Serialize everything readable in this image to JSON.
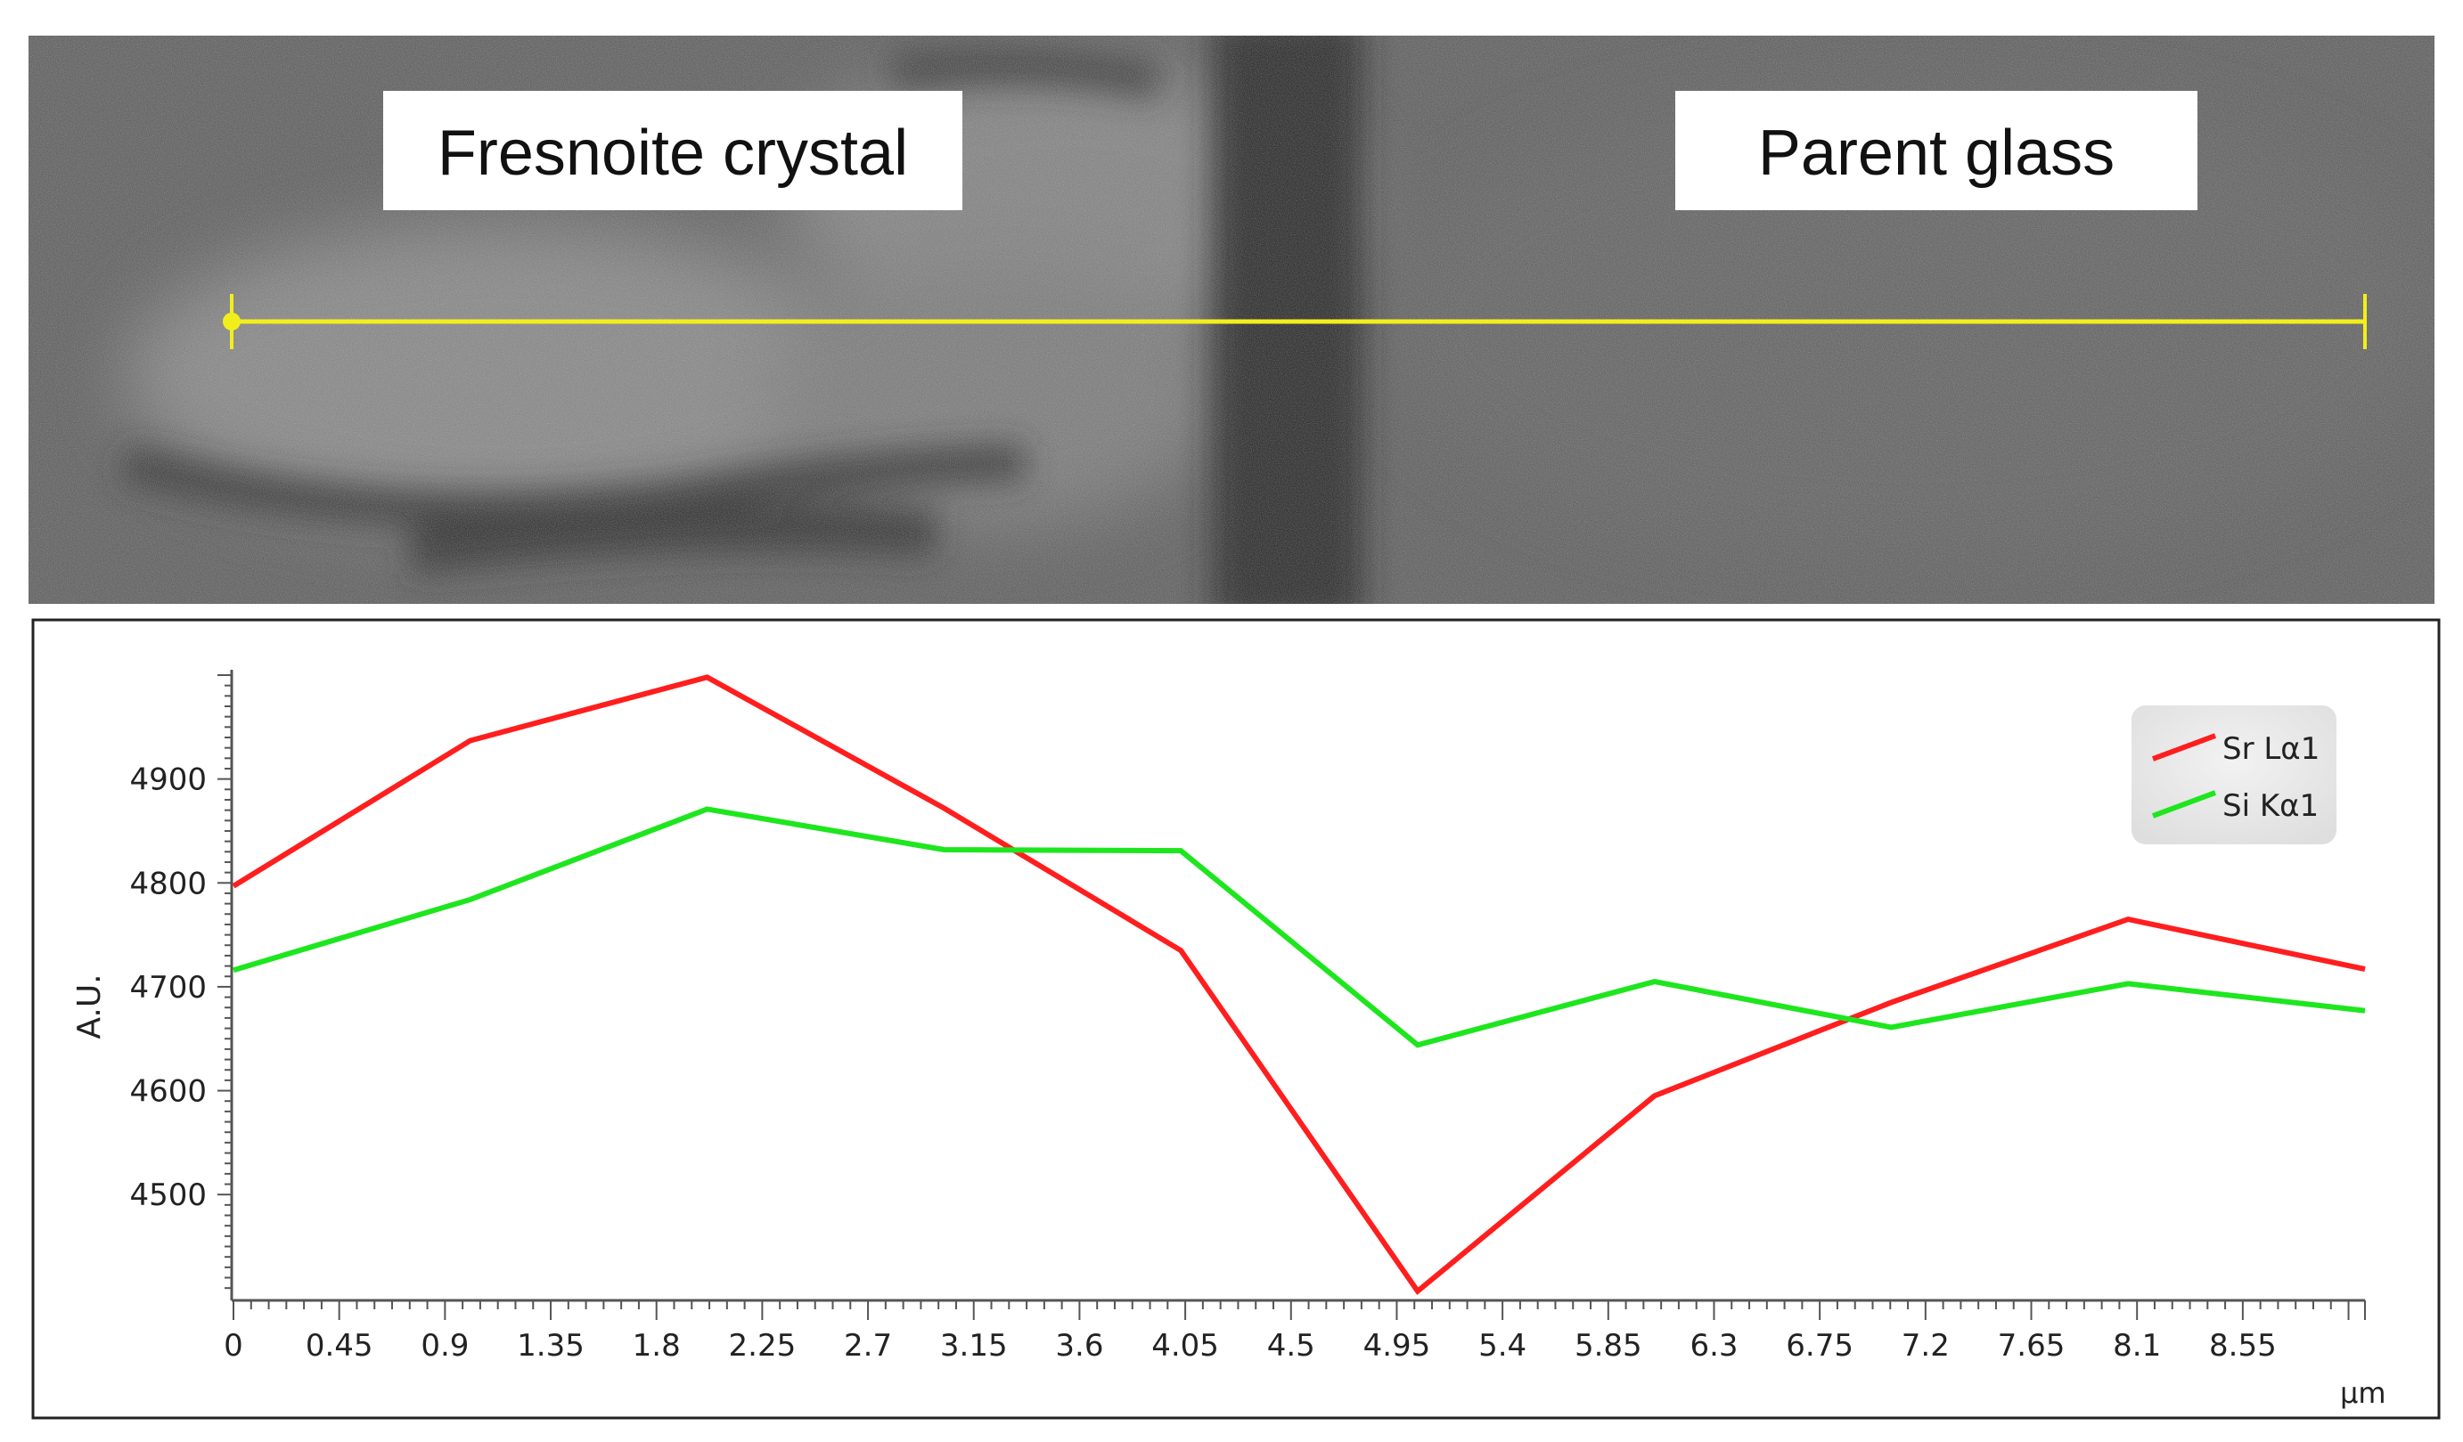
{
  "micrograph": {
    "labels": [
      "Fresnoite crystal",
      "Parent glass"
    ],
    "line_color": "#f2ee1c"
  },
  "chart_data": {
    "type": "line",
    "x": [
      0,
      1,
      2,
      3,
      4,
      5,
      6,
      7,
      8,
      9
    ],
    "x_ticks": [
      "0",
      "0.45",
      "0.9",
      "1.35",
      "1.8",
      "2.25",
      "2.7",
      "3.15",
      "3.6",
      "4.05",
      "4.5",
      "4.95",
      "5.4",
      "5.85",
      "6.3",
      "6.75",
      "7.2",
      "7.65",
      "8.1",
      "8.55"
    ],
    "xlabel": "µm",
    "ylabel": "A.U.",
    "y_ticks": [
      4500,
      4600,
      4700,
      4800,
      4900
    ],
    "ylim": [
      4405,
      5000
    ],
    "xlim": [
      0,
      9
    ],
    "legend_position": "top-right",
    "series": [
      {
        "name": "Sr Lα1",
        "color": "#ff1e1e",
        "values": [
          4797,
          4937,
          4998,
          4872,
          4735,
          4407,
          4595,
          4685,
          4765,
          4717
        ]
      },
      {
        "name": "Si Kα1",
        "color": "#1ee61e",
        "values": [
          4716,
          4784,
          4871,
          4832,
          4831,
          4644,
          4705,
          4661,
          4703,
          4677
        ]
      }
    ]
  }
}
